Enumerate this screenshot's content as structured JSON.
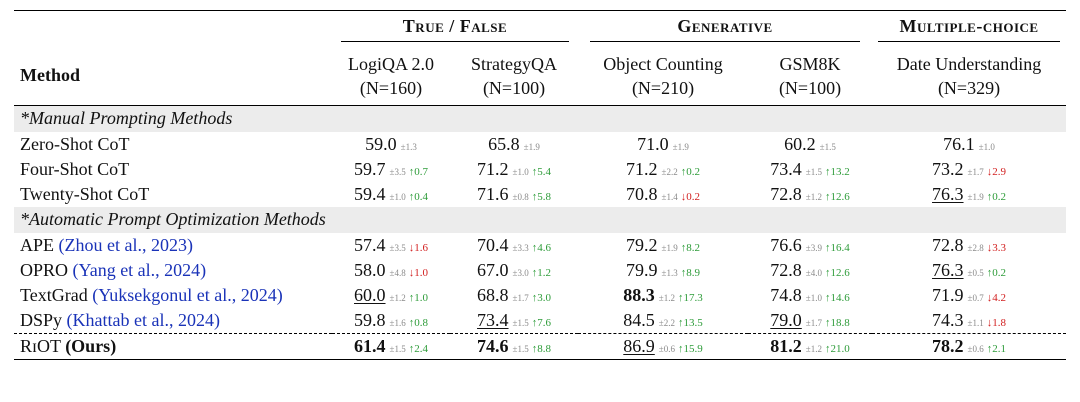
{
  "header": {
    "groups": [
      "True / False",
      "Generative",
      "Multiple-choice"
    ],
    "method_label": "Method",
    "datasets": [
      {
        "name": "LogiQA 2.0",
        "n": "(N=160)"
      },
      {
        "name": "StrategyQA",
        "n": "(N=100)"
      },
      {
        "name": "Object Counting",
        "n": "(N=210)"
      },
      {
        "name": "GSM8K",
        "n": "(N=100)"
      },
      {
        "name": "Date Understanding",
        "n": "(N=329)"
      }
    ]
  },
  "sections": [
    {
      "title": "*Manual Prompting Methods",
      "rows": [
        {
          "method": "Zero-Shot CoT",
          "cite": "",
          "cells": [
            {
              "v": "59.0",
              "sd": "±1.3",
              "d": "",
              "dir": ""
            },
            {
              "v": "65.8",
              "sd": "±1.9",
              "d": "",
              "dir": ""
            },
            {
              "v": "71.0",
              "sd": "±1.9",
              "d": "",
              "dir": ""
            },
            {
              "v": "60.2",
              "sd": "±1.5",
              "d": "",
              "dir": ""
            },
            {
              "v": "76.1",
              "sd": "±1.0",
              "d": "",
              "dir": ""
            }
          ]
        },
        {
          "method": "Four-Shot CoT",
          "cite": "",
          "cells": [
            {
              "v": "59.7",
              "sd": "±3.5",
              "d": "↑0.7",
              "dir": "up"
            },
            {
              "v": "71.2",
              "sd": "±1.0",
              "d": "↑5.4",
              "dir": "up"
            },
            {
              "v": "71.2",
              "sd": "±2.2",
              "d": "↑0.2",
              "dir": "up"
            },
            {
              "v": "73.4",
              "sd": "±1.5",
              "d": "↑13.2",
              "dir": "up"
            },
            {
              "v": "73.2",
              "sd": "±1.7",
              "d": "↓2.9",
              "dir": "dn"
            }
          ]
        },
        {
          "method": "Twenty-Shot CoT",
          "cite": "",
          "cells": [
            {
              "v": "59.4",
              "sd": "±1.0",
              "d": "↑0.4",
              "dir": "up"
            },
            {
              "v": "71.6",
              "sd": "±0.8",
              "d": "↑5.8",
              "dir": "up"
            },
            {
              "v": "70.8",
              "sd": "±1.4",
              "d": "↓0.2",
              "dir": "dn"
            },
            {
              "v": "72.8",
              "sd": "±1.2",
              "d": "↑12.6",
              "dir": "up"
            },
            {
              "v": "76.3",
              "sd": "±1.9",
              "d": "↑0.2",
              "dir": "up",
              "style": "u"
            }
          ]
        }
      ]
    },
    {
      "title": "*Automatic Prompt Optimization Methods",
      "rows": [
        {
          "method": "APE",
          "cite": "(Zhou et al., 2023)",
          "cells": [
            {
              "v": "57.4",
              "sd": "±3.5",
              "d": "↓1.6",
              "dir": "dn"
            },
            {
              "v": "70.4",
              "sd": "±3.3",
              "d": "↑4.6",
              "dir": "up"
            },
            {
              "v": "79.2",
              "sd": "±1.9",
              "d": "↑8.2",
              "dir": "up"
            },
            {
              "v": "76.6",
              "sd": "±3.9",
              "d": "↑16.4",
              "dir": "up"
            },
            {
              "v": "72.8",
              "sd": "±2.8",
              "d": "↓3.3",
              "dir": "dn"
            }
          ]
        },
        {
          "method": "OPRO",
          "cite": "(Yang et al., 2024)",
          "cells": [
            {
              "v": "58.0",
              "sd": "±4.8",
              "d": "↓1.0",
              "dir": "dn"
            },
            {
              "v": "67.0",
              "sd": "±3.0",
              "d": "↑1.2",
              "dir": "up"
            },
            {
              "v": "79.9",
              "sd": "±1.3",
              "d": "↑8.9",
              "dir": "up"
            },
            {
              "v": "72.8",
              "sd": "±4.0",
              "d": "↑12.6",
              "dir": "up"
            },
            {
              "v": "76.3",
              "sd": "±0.5",
              "d": "↑0.2",
              "dir": "up",
              "style": "u"
            }
          ]
        },
        {
          "method": "TextGrad",
          "cite": "(Yuksekgonul et al., 2024)",
          "cells": [
            {
              "v": "60.0",
              "sd": "±1.2",
              "d": "↑1.0",
              "dir": "up",
              "style": "u"
            },
            {
              "v": "68.8",
              "sd": "±1.7",
              "d": "↑3.0",
              "dir": "up"
            },
            {
              "v": "88.3",
              "sd": "±1.2",
              "d": "↑17.3",
              "dir": "up",
              "style": "b"
            },
            {
              "v": "74.8",
              "sd": "±1.0",
              "d": "↑14.6",
              "dir": "up"
            },
            {
              "v": "71.9",
              "sd": "±0.7",
              "d": "↓4.2",
              "dir": "dn"
            }
          ]
        },
        {
          "method": "DSPy",
          "cite": "(Khattab et al., 2024)",
          "cells": [
            {
              "v": "59.8",
              "sd": "±1.6",
              "d": "↑0.8",
              "dir": "up"
            },
            {
              "v": "73.4",
              "sd": "±1.5",
              "d": "↑7.6",
              "dir": "up",
              "style": "u"
            },
            {
              "v": "84.5",
              "sd": "±2.2",
              "d": "↑13.5",
              "dir": "up"
            },
            {
              "v": "79.0",
              "sd": "±1.7",
              "d": "↑18.8",
              "dir": "up",
              "style": "u"
            },
            {
              "v": "74.3",
              "sd": "±1.1",
              "d": "↓1.8",
              "dir": "dn"
            }
          ]
        }
      ]
    }
  ],
  "ours": {
    "method": "RɪOT",
    "suffix": "(Ours)",
    "cells": [
      {
        "v": "61.4",
        "sd": "±1.5",
        "d": "↑2.4",
        "dir": "up",
        "style": "b"
      },
      {
        "v": "74.6",
        "sd": "±1.5",
        "d": "↑8.8",
        "dir": "up",
        "style": "b"
      },
      {
        "v": "86.9",
        "sd": "±0.6",
        "d": "↑15.9",
        "dir": "up",
        "style": "u"
      },
      {
        "v": "81.2",
        "sd": "±1.2",
        "d": "↑21.0",
        "dir": "up",
        "style": "b"
      },
      {
        "v": "78.2",
        "sd": "±0.6",
        "d": "↑2.1",
        "dir": "up",
        "style": "b"
      }
    ]
  }
}
